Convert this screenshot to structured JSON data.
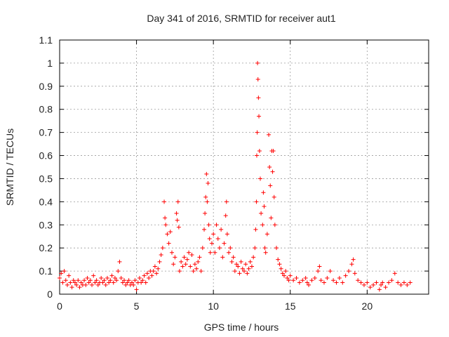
{
  "chart_data": {
    "type": "scatter",
    "title": "Day 341 of 2016, SRMTID for receiver aut1",
    "xlabel": "GPS time / hours",
    "ylabel": "SRMTID / TECUs",
    "xlim": [
      0,
      24
    ],
    "ylim": [
      0,
      1.1
    ],
    "xticks": [
      0,
      5,
      10,
      15,
      20
    ],
    "xtick_labels": [
      "0",
      "5",
      "10",
      "15",
      "20"
    ],
    "yticks": [
      0,
      0.1,
      0.2,
      0.3,
      0.4,
      0.5,
      0.6,
      0.7,
      0.8,
      0.9,
      1,
      1.1
    ],
    "ytick_labels": [
      "0",
      "0.1",
      "0.2",
      "0.3",
      "0.4",
      "0.5",
      "0.6",
      "0.7",
      "0.8",
      "0.9",
      "1",
      "1.1"
    ],
    "grid": true,
    "marker": "+",
    "series": [
      {
        "name": "aut1",
        "color": "#ff0000",
        "points": [
          [
            0.0,
            0.07
          ],
          [
            0.1,
            0.09
          ],
          [
            0.2,
            0.05
          ],
          [
            0.3,
            0.1
          ],
          [
            0.4,
            0.06
          ],
          [
            0.5,
            0.04
          ],
          [
            0.6,
            0.08
          ],
          [
            0.7,
            0.05
          ],
          [
            0.8,
            0.03
          ],
          [
            0.9,
            0.06
          ],
          [
            1.0,
            0.05
          ],
          [
            1.1,
            0.04
          ],
          [
            1.2,
            0.06
          ],
          [
            1.3,
            0.03
          ],
          [
            1.4,
            0.05
          ],
          [
            1.5,
            0.04
          ],
          [
            1.6,
            0.06
          ],
          [
            1.7,
            0.04
          ],
          [
            1.8,
            0.07
          ],
          [
            1.9,
            0.05
          ],
          [
            2.0,
            0.06
          ],
          [
            2.1,
            0.04
          ],
          [
            2.2,
            0.08
          ],
          [
            2.3,
            0.05
          ],
          [
            2.4,
            0.06
          ],
          [
            2.5,
            0.04
          ],
          [
            2.6,
            0.05
          ],
          [
            2.7,
            0.07
          ],
          [
            2.8,
            0.05
          ],
          [
            2.9,
            0.06
          ],
          [
            3.0,
            0.04
          ],
          [
            3.1,
            0.07
          ],
          [
            3.2,
            0.05
          ],
          [
            3.3,
            0.06
          ],
          [
            3.4,
            0.08
          ],
          [
            3.5,
            0.05
          ],
          [
            3.6,
            0.07
          ],
          [
            3.7,
            0.06
          ],
          [
            3.8,
            0.1
          ],
          [
            3.9,
            0.14
          ],
          [
            4.0,
            0.07
          ],
          [
            4.1,
            0.05
          ],
          [
            4.2,
            0.06
          ],
          [
            4.3,
            0.04
          ],
          [
            4.4,
            0.05
          ],
          [
            4.5,
            0.06
          ],
          [
            4.6,
            0.04
          ],
          [
            4.7,
            0.05
          ],
          [
            4.8,
            0.04
          ],
          [
            4.9,
            0.06
          ],
          [
            5.0,
            0.02
          ],
          [
            5.1,
            0.05
          ],
          [
            5.2,
            0.07
          ],
          [
            5.3,
            0.05
          ],
          [
            5.4,
            0.06
          ],
          [
            5.5,
            0.08
          ],
          [
            5.6,
            0.05
          ],
          [
            5.7,
            0.09
          ],
          [
            5.8,
            0.07
          ],
          [
            5.9,
            0.1
          ],
          [
            6.0,
            0.08
          ],
          [
            6.1,
            0.1
          ],
          [
            6.2,
            0.12
          ],
          [
            6.3,
            0.09
          ],
          [
            6.4,
            0.11
          ],
          [
            6.5,
            0.14
          ],
          [
            6.6,
            0.17
          ],
          [
            6.7,
            0.2
          ],
          [
            6.8,
            0.4
          ],
          [
            6.85,
            0.33
          ],
          [
            6.9,
            0.3
          ],
          [
            7.0,
            0.26
          ],
          [
            7.1,
            0.22
          ],
          [
            7.2,
            0.27
          ],
          [
            7.3,
            0.18
          ],
          [
            7.4,
            0.13
          ],
          [
            7.5,
            0.16
          ],
          [
            7.6,
            0.35
          ],
          [
            7.65,
            0.32
          ],
          [
            7.7,
            0.4
          ],
          [
            7.75,
            0.29
          ],
          [
            7.8,
            0.1
          ],
          [
            7.9,
            0.14
          ],
          [
            8.0,
            0.12
          ],
          [
            8.1,
            0.16
          ],
          [
            8.2,
            0.13
          ],
          [
            8.3,
            0.15
          ],
          [
            8.4,
            0.18
          ],
          [
            8.5,
            0.12
          ],
          [
            8.6,
            0.17
          ],
          [
            8.7,
            0.1
          ],
          [
            8.8,
            0.13
          ],
          [
            8.9,
            0.11
          ],
          [
            9.0,
            0.14
          ],
          [
            9.1,
            0.16
          ],
          [
            9.2,
            0.1
          ],
          [
            9.3,
            0.2
          ],
          [
            9.4,
            0.28
          ],
          [
            9.45,
            0.35
          ],
          [
            9.5,
            0.42
          ],
          [
            9.55,
            0.52
          ],
          [
            9.6,
            0.4
          ],
          [
            9.65,
            0.48
          ],
          [
            9.7,
            0.3
          ],
          [
            9.75,
            0.24
          ],
          [
            9.8,
            0.18
          ],
          [
            9.9,
            0.22
          ],
          [
            10.0,
            0.26
          ],
          [
            10.1,
            0.18
          ],
          [
            10.2,
            0.3
          ],
          [
            10.3,
            0.24
          ],
          [
            10.4,
            0.2
          ],
          [
            10.5,
            0.28
          ],
          [
            10.6,
            0.16
          ],
          [
            10.7,
            0.22
          ],
          [
            10.8,
            0.34
          ],
          [
            10.85,
            0.4
          ],
          [
            10.9,
            0.26
          ],
          [
            11.0,
            0.18
          ],
          [
            11.1,
            0.2
          ],
          [
            11.2,
            0.14
          ],
          [
            11.3,
            0.16
          ],
          [
            11.4,
            0.1
          ],
          [
            11.5,
            0.13
          ],
          [
            11.6,
            0.12
          ],
          [
            11.7,
            0.09
          ],
          [
            11.8,
            0.14
          ],
          [
            11.9,
            0.11
          ],
          [
            12.0,
            0.1
          ],
          [
            12.1,
            0.13
          ],
          [
            12.2,
            0.09
          ],
          [
            12.3,
            0.11
          ],
          [
            12.4,
            0.14
          ],
          [
            12.5,
            0.12
          ],
          [
            12.6,
            0.16
          ],
          [
            12.7,
            0.2
          ],
          [
            12.75,
            0.28
          ],
          [
            12.8,
            0.4
          ],
          [
            12.82,
            0.6
          ],
          [
            12.85,
            0.7
          ],
          [
            12.87,
            1.0
          ],
          [
            12.9,
            0.93
          ],
          [
            12.93,
            0.85
          ],
          [
            12.96,
            0.77
          ],
          [
            13.0,
            0.62
          ],
          [
            13.05,
            0.5
          ],
          [
            13.1,
            0.35
          ],
          [
            13.2,
            0.3
          ],
          [
            13.25,
            0.44
          ],
          [
            13.3,
            0.38
          ],
          [
            13.35,
            0.2
          ],
          [
            13.4,
            0.18
          ],
          [
            13.5,
            0.26
          ],
          [
            13.6,
            0.69
          ],
          [
            13.65,
            0.55
          ],
          [
            13.7,
            0.47
          ],
          [
            13.75,
            0.33
          ],
          [
            13.8,
            0.62
          ],
          [
            13.85,
            0.53
          ],
          [
            13.9,
            0.62
          ],
          [
            13.95,
            0.42
          ],
          [
            14.0,
            0.3
          ],
          [
            14.1,
            0.2
          ],
          [
            14.2,
            0.15
          ],
          [
            14.3,
            0.13
          ],
          [
            14.4,
            0.11
          ],
          [
            14.5,
            0.09
          ],
          [
            14.6,
            0.08
          ],
          [
            14.7,
            0.1
          ],
          [
            14.8,
            0.07
          ],
          [
            14.9,
            0.06
          ],
          [
            15.0,
            0.08
          ],
          [
            15.2,
            0.06
          ],
          [
            15.4,
            0.07
          ],
          [
            15.6,
            0.05
          ],
          [
            15.8,
            0.06
          ],
          [
            16.0,
            0.07
          ],
          [
            16.1,
            0.05
          ],
          [
            16.2,
            0.04
          ],
          [
            16.4,
            0.06
          ],
          [
            16.6,
            0.07
          ],
          [
            16.8,
            0.1
          ],
          [
            16.9,
            0.12
          ],
          [
            17.0,
            0.06
          ],
          [
            17.2,
            0.05
          ],
          [
            17.4,
            0.07
          ],
          [
            17.6,
            0.1
          ],
          [
            17.8,
            0.06
          ],
          [
            18.0,
            0.05
          ],
          [
            18.2,
            0.07
          ],
          [
            18.4,
            0.05
          ],
          [
            18.6,
            0.08
          ],
          [
            18.8,
            0.1
          ],
          [
            19.0,
            0.13
          ],
          [
            19.1,
            0.15
          ],
          [
            19.2,
            0.09
          ],
          [
            19.4,
            0.06
          ],
          [
            19.6,
            0.05
          ],
          [
            19.8,
            0.04
          ],
          [
            20.0,
            0.05
          ],
          [
            20.2,
            0.03
          ],
          [
            20.4,
            0.04
          ],
          [
            20.6,
            0.05
          ],
          [
            20.8,
            0.02
          ],
          [
            20.9,
            0.04
          ],
          [
            21.0,
            0.05
          ],
          [
            21.2,
            0.03
          ],
          [
            21.4,
            0.05
          ],
          [
            21.6,
            0.06
          ],
          [
            21.8,
            0.09
          ],
          [
            22.0,
            0.05
          ],
          [
            22.2,
            0.04
          ],
          [
            22.4,
            0.05
          ],
          [
            22.6,
            0.04
          ],
          [
            22.8,
            0.05
          ]
        ]
      }
    ]
  }
}
